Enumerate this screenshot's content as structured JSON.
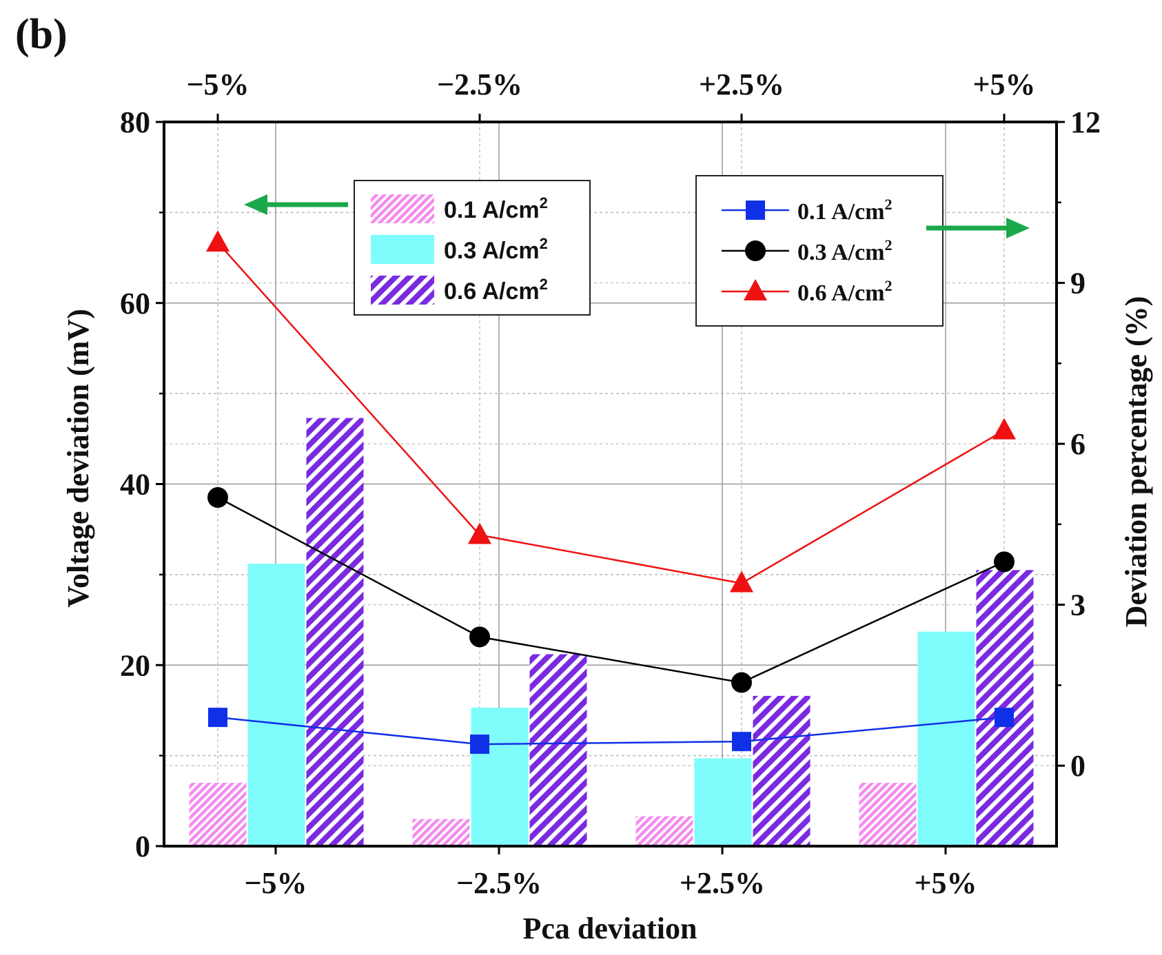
{
  "panel_label": "(b)",
  "chart_data": {
    "type": "bar+line",
    "title": "",
    "xlabel": "Pca deviation",
    "ylabel_left": "Voltage deviation (mV)",
    "ylabel_right": "Deviation percentage (%)",
    "categories": [
      "−5%",
      "−2.5%",
      "+2.5%",
      "+5%"
    ],
    "top_categories": [
      "−5%",
      "−2.5%",
      "+2.5%",
      "+5%"
    ],
    "ylim_left": [
      0,
      80
    ],
    "yticks_left": [
      "0",
      "20",
      "40",
      "60",
      "80"
    ],
    "ylim_right": [
      -1.5,
      12
    ],
    "yticks_right": [
      "0",
      "3",
      "6",
      "9",
      "12"
    ],
    "grid": true,
    "bar_series": [
      {
        "name": "0.1 A/cm²",
        "label": "0.1 A/cm",
        "sup": "2",
        "values": [
          7,
          3,
          3.3,
          7
        ],
        "color": "#f58cf0",
        "pattern": "fine-hatch"
      },
      {
        "name": "0.3 A/cm²",
        "label": "0.3 A/cm",
        "sup": "2",
        "values": [
          31.2,
          15.3,
          9.7,
          23.7
        ],
        "color": "#7ffcfc",
        "pattern": "solid"
      },
      {
        "name": "0.6 A/cm²",
        "label": "0.6 A/cm",
        "sup": "2",
        "values": [
          47.3,
          21.2,
          16.6,
          30.5
        ],
        "color": "#7a2be0",
        "pattern": "hatch"
      }
    ],
    "line_series": [
      {
        "name": "0.1 A/cm²",
        "label": "0.1 A/cm",
        "sup": "2",
        "values": [
          0.9,
          0.4,
          0.45,
          0.9
        ],
        "color": "#1030e8",
        "marker": "square"
      },
      {
        "name": "0.3 A/cm²",
        "label": "0.3 A/cm",
        "sup": "2",
        "values": [
          5.0,
          2.4,
          1.55,
          3.8
        ],
        "color": "#000000",
        "marker": "circle"
      },
      {
        "name": "0.6 A/cm²",
        "label": "0.6 A/cm",
        "sup": "2",
        "values": [
          9.75,
          4.3,
          3.4,
          6.25
        ],
        "color": "#ee1111",
        "marker": "triangle"
      }
    ],
    "legend_bars_placement": "top-center",
    "legend_lines_placement": "top-right",
    "arrow_color": "#1aa84a"
  }
}
